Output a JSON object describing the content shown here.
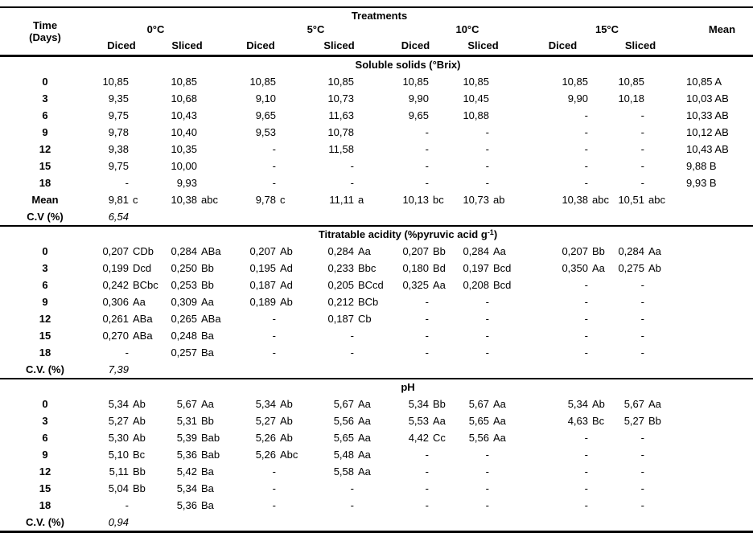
{
  "header": {
    "time_line1": "Time",
    "time_line2": "(Days)",
    "treatments": "Treatments",
    "mean": "Mean",
    "temps": [
      "0°C",
      "5°C",
      "10°C",
      "15°C"
    ],
    "cuts": [
      "Diced",
      "Sliced"
    ]
  },
  "sections": [
    {
      "title": "Soluble solids (°Brix)",
      "title_sup": "",
      "title_end": "",
      "cv_label": "C.V (%)",
      "cv_value": "6,54",
      "rows": [
        {
          "label": "0",
          "cells": [
            "10,85",
            "10,85",
            "10,85",
            "10,85",
            "10,85",
            "10,85",
            "10,85",
            "10,85"
          ],
          "mean": "10,85 A"
        },
        {
          "label": "3",
          "cells": [
            "9,35",
            "10,68",
            "9,10",
            "10,73",
            "9,90",
            "10,45",
            "9,90",
            "10,18"
          ],
          "mean": "10,03 AB"
        },
        {
          "label": "6",
          "cells": [
            "9,75",
            "10,43",
            "9,65",
            "11,63",
            "9,65",
            "10,88",
            "-",
            "-"
          ],
          "mean": "10,33 AB"
        },
        {
          "label": "9",
          "cells": [
            "9,78",
            "10,40",
            "9,53",
            "10,78",
            "-",
            "-",
            "-",
            "-"
          ],
          "mean": "10,12 AB"
        },
        {
          "label": "12",
          "cells": [
            "9,38",
            "10,35",
            "-",
            "11,58",
            "-",
            "-",
            "-",
            "-"
          ],
          "mean": "10,43 AB"
        },
        {
          "label": "15",
          "cells": [
            "9,75",
            "10,00",
            "-",
            "-",
            "-",
            "-",
            "-",
            "-"
          ],
          "mean": "9,88 B"
        },
        {
          "label": "18",
          "cells": [
            "-",
            "9,93",
            "-",
            "-",
            "-",
            "-",
            "-",
            "-"
          ],
          "mean": "9,93 B"
        },
        {
          "label": "Mean",
          "cells": [
            "9,81 c",
            "10,38 abc",
            "9,78 c",
            "11,11 a",
            "10,13 bc",
            "10,73 ab",
            "10,38 abc",
            "10,51 abc"
          ],
          "mean": ""
        }
      ]
    },
    {
      "title": "Titratable acidity (%pyruvic acid g",
      "title_sup": "-1",
      "title_end": ")",
      "cv_label": "C.V. (%)",
      "cv_value": "7,39",
      "rows": [
        {
          "label": "0",
          "cells": [
            "0,207 CDb",
            "0,284 ABa",
            "0,207 Ab",
            "0,284 Aa",
            "0,207 Bb",
            "0,284 Aa",
            "0,207 Bb",
            "0,284 Aa"
          ],
          "mean": ""
        },
        {
          "label": "3",
          "cells": [
            "0,199 Dcd",
            "0,250 Bb",
            "0,195 Ad",
            "0,233 Bbc",
            "0,180 Bd",
            "0,197 Bcd",
            "0,350 Aa",
            "0,275 Ab"
          ],
          "mean": ""
        },
        {
          "label": "6",
          "cells": [
            "0,242 BCbc",
            "0,253 Bb",
            "0,187 Ad",
            "0,205 BCcd",
            "0,325 Aa",
            "0,208 Bcd",
            "-",
            "-"
          ],
          "mean": ""
        },
        {
          "label": "9",
          "cells": [
            "0,306 Aa",
            "0,309 Aa",
            "0,189 Ab",
            "0,212 BCb",
            "-",
            "-",
            "-",
            "-"
          ],
          "mean": ""
        },
        {
          "label": "12",
          "cells": [
            "0,261 ABa",
            "0,265 ABa",
            "-",
            "0,187 Cb",
            "-",
            "-",
            "-",
            "-"
          ],
          "mean": ""
        },
        {
          "label": "15",
          "cells": [
            "0,270 ABa",
            "0,248 Ba",
            "-",
            "-",
            "-",
            "-",
            "-",
            "-"
          ],
          "mean": ""
        },
        {
          "label": "18",
          "cells": [
            "-",
            "0,257 Ba",
            "-",
            "-",
            "-",
            "-",
            "-",
            "-"
          ],
          "mean": ""
        }
      ]
    },
    {
      "title": "pH",
      "title_sup": "",
      "title_end": "",
      "cv_label": "C.V. (%)",
      "cv_value": "0,94",
      "rows": [
        {
          "label": "0",
          "cells": [
            "5,34 Ab",
            "5,67 Aa",
            "5,34 Ab",
            "5,67 Aa",
            "5,34 Bb",
            "5,67 Aa",
            "5,34 Ab",
            "5,67 Aa"
          ],
          "mean": ""
        },
        {
          "label": "3",
          "cells": [
            "5,27 Ab",
            "5,31 Bb",
            "5,27 Ab",
            "5,56 Aa",
            "5,53 Aa",
            "5,65 Aa",
            "4,63 Bc",
            "5,27 Bb"
          ],
          "mean": ""
        },
        {
          "label": "6",
          "cells": [
            "5,30 Ab",
            "5,39 Bab",
            "5,26 Ab",
            "5,65 Aa",
            "4,42 Cc",
            "5,56 Aa",
            "-",
            "-"
          ],
          "mean": ""
        },
        {
          "label": "9",
          "cells": [
            "5,10 Bc",
            "5,36 Bab",
            "5,26 Abc",
            "5,48 Aa",
            "-",
            "-",
            "-",
            "-"
          ],
          "mean": ""
        },
        {
          "label": "12",
          "cells": [
            "5,11 Bb",
            "5,42 Ba",
            "-",
            "5,58 Aa",
            "-",
            "-",
            "-",
            "-"
          ],
          "mean": ""
        },
        {
          "label": "15",
          "cells": [
            "5,04 Bb",
            "5,34 Ba",
            "-",
            "-",
            "-",
            "-",
            "-",
            "-"
          ],
          "mean": ""
        },
        {
          "label": "18",
          "cells": [
            "-",
            "5,36 Ba",
            "-",
            "-",
            "-",
            "-",
            "-",
            "-"
          ],
          "mean": ""
        }
      ]
    }
  ]
}
